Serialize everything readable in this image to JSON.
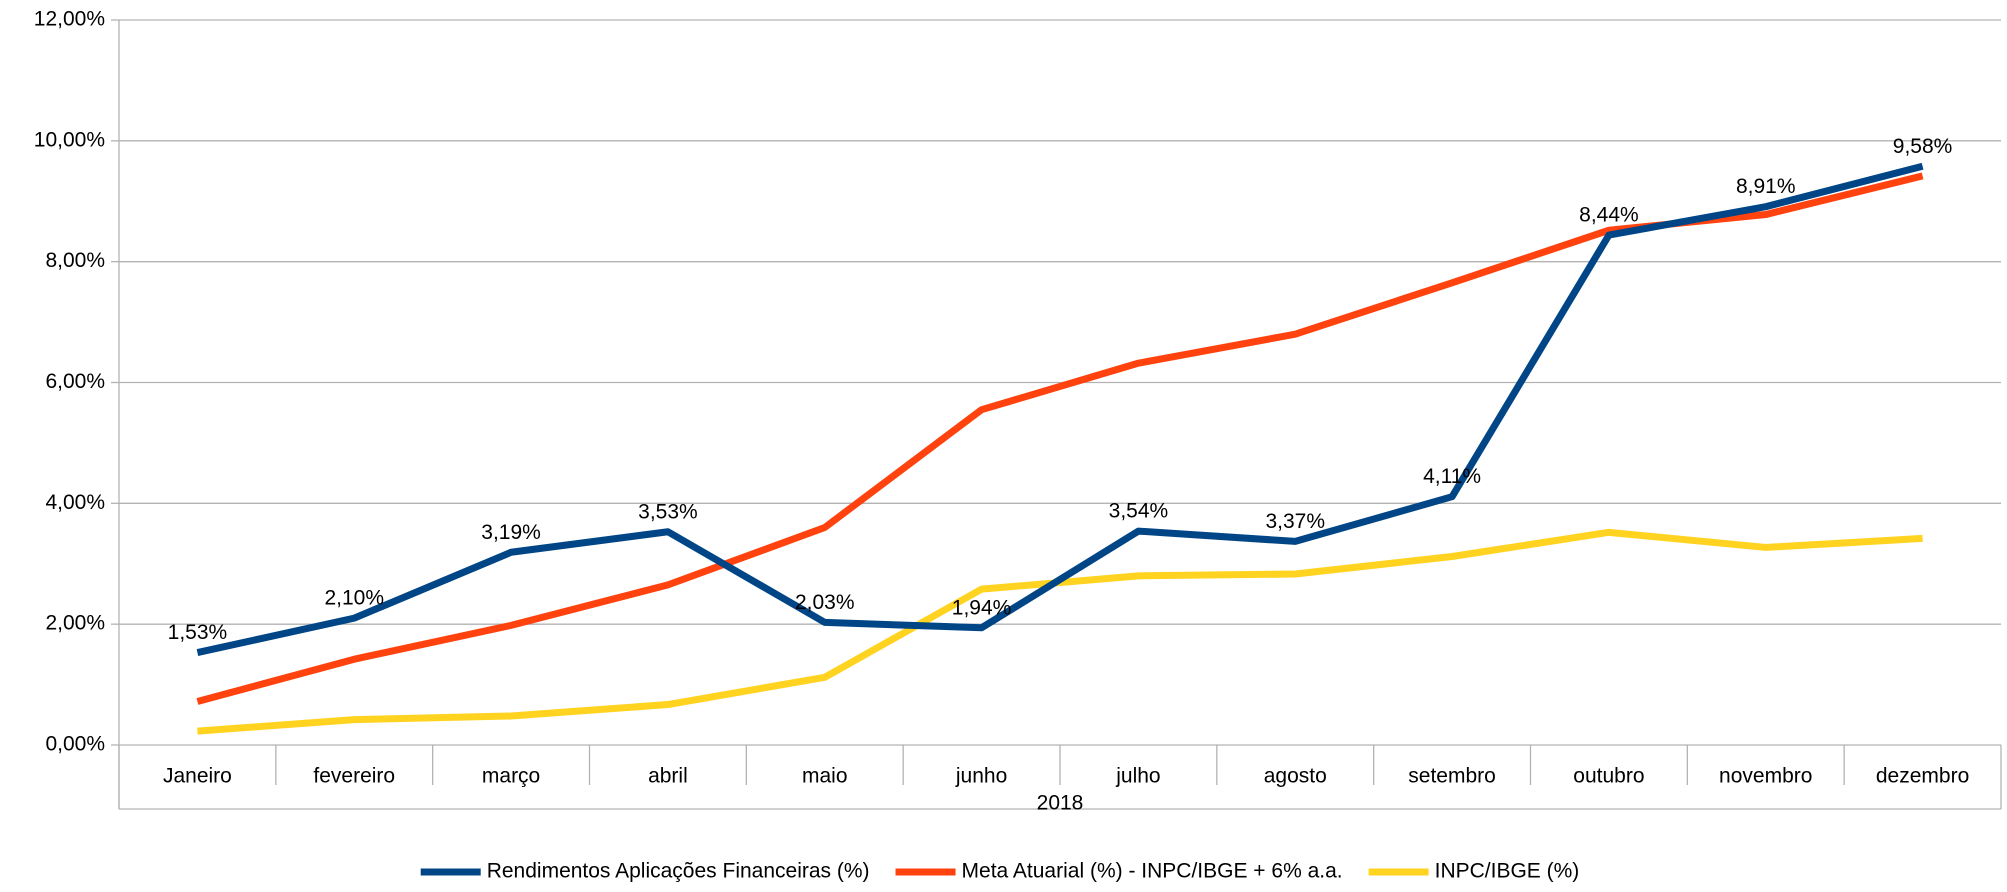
{
  "chart_data": {
    "type": "line",
    "x_label": "2018",
    "categories": [
      "Janeiro",
      "fevereiro",
      "março",
      "abril",
      "maio",
      "junho",
      "julho",
      "agosto",
      "setembro",
      "outubro",
      "novembro",
      "dezembro"
    ],
    "series": [
      {
        "name": "Rendimentos Aplicações Financeiras (%)",
        "color": "#004586",
        "values": [
          1.53,
          2.1,
          3.19,
          3.53,
          2.03,
          1.94,
          3.54,
          3.37,
          4.11,
          8.44,
          8.91,
          9.58
        ],
        "value_labels": [
          "1,53%",
          "2,10%",
          "3,19%",
          "3,53%",
          "2,03%",
          "1,94%",
          "3,54%",
          "3,37%",
          "4,11%",
          "8,44%",
          "8,91%",
          "9,58%"
        ]
      },
      {
        "name": "Meta Atuarial (%) - INPC/IBGE + 6% a.a.",
        "color": "#ff420e",
        "values": [
          0.72,
          1.42,
          1.98,
          2.65,
          3.6,
          5.55,
          6.32,
          6.8,
          7.65,
          8.52,
          8.78,
          9.42
        ]
      },
      {
        "name": "INPC/IBGE (%)",
        "color": "#ffd320",
        "values": [
          0.23,
          0.42,
          0.48,
          0.67,
          1.12,
          2.58,
          2.8,
          2.83,
          3.12,
          3.52,
          3.27,
          3.42
        ]
      }
    ],
    "ylim": [
      0,
      12
    ],
    "yticks": [
      {
        "value": 0,
        "label": "0,00%"
      },
      {
        "value": 2,
        "label": "2,00%"
      },
      {
        "value": 4,
        "label": "4,00%"
      },
      {
        "value": 6,
        "label": "6,00%"
      },
      {
        "value": 8,
        "label": "8,00%"
      },
      {
        "value": 10,
        "label": "10,00%"
      },
      {
        "value": 12,
        "label": "12,00%"
      }
    ],
    "grid": true,
    "legend": "bottom"
  }
}
